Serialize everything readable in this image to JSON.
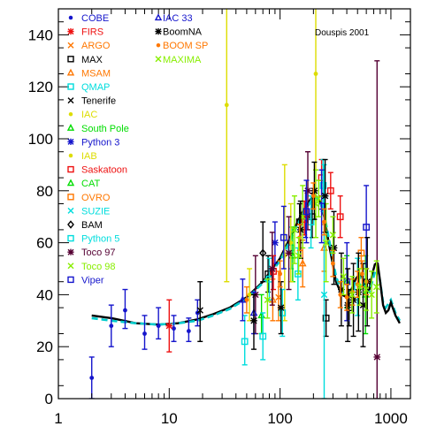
{
  "chart_data": {
    "type": "scatter",
    "x_scale": "log",
    "xlim": [
      1,
      1500
    ],
    "ylim": [
      0,
      150
    ],
    "x_ticks": [
      1,
      10,
      100,
      1000
    ],
    "x_tick_labels": [
      "1",
      "10",
      "100",
      "1000"
    ],
    "y_ticks": [
      0,
      20,
      40,
      60,
      80,
      100,
      120,
      140
    ],
    "y_tick_labels": [
      "0",
      "20",
      "40",
      "60",
      "80",
      "100",
      "120",
      "140"
    ],
    "xlabel": "",
    "ylabel": "",
    "annotation": "Douspis 2001",
    "legend_position": "top-left",
    "series": [
      {
        "name": "COBE",
        "marker": "dot",
        "color": "#1515cc",
        "points": [
          [
            2,
            8,
            0,
            16
          ],
          [
            3,
            28,
            20,
            36
          ],
          [
            4,
            34,
            27,
            42
          ],
          [
            6,
            25,
            19,
            32
          ],
          [
            8,
            28,
            23,
            35
          ],
          [
            11,
            27,
            22,
            32
          ],
          [
            15,
            26,
            22,
            31
          ],
          [
            18,
            33,
            28,
            38
          ]
        ]
      },
      {
        "name": "FIRS",
        "marker": "asterisk",
        "color": "#ee1111",
        "points": [
          [
            10,
            28,
            18,
            38
          ]
        ]
      },
      {
        "name": "ARGO",
        "marker": "x",
        "color": "#ff7700",
        "points": [
          [
            97,
            39,
            30,
            49
          ]
        ]
      },
      {
        "name": "MAX",
        "marker": "square",
        "color": "#000000",
        "points": [
          [
            78,
            48,
            41,
            55
          ],
          [
            150,
            68,
            60,
            75
          ],
          [
            195,
            70,
            62,
            79
          ],
          [
            260,
            31,
            24,
            38
          ],
          [
            420,
            35,
            28,
            42
          ]
        ]
      },
      {
        "name": "MSAM",
        "marker": "triangle",
        "color": "#ff7700",
        "points": [
          [
            86,
            38,
            30,
            46
          ],
          [
            160,
            52,
            43,
            61
          ],
          [
            250,
            58,
            49,
            67
          ]
        ]
      },
      {
        "name": "QMAP",
        "marker": "square",
        "color": "#00dddd",
        "points": [
          [
            80,
            46,
            38,
            54
          ],
          [
            126,
            58,
            50,
            66
          ]
        ]
      },
      {
        "name": "Tenerife",
        "marker": "x",
        "color": "#000000",
        "points": [
          [
            19,
            34,
            22,
            45
          ]
        ]
      },
      {
        "name": "IAC",
        "marker": "dot",
        "color": "#dddd00",
        "points": [
          [
            33,
            113,
            45,
            160
          ],
          [
            53,
            40,
            30,
            50
          ],
          [
            110,
            55,
            30,
            90
          ],
          [
            210,
            125,
            88,
            160
          ]
        ]
      },
      {
        "name": "South Pole",
        "marker": "triangle",
        "color": "#00dd00",
        "points": [
          [
            68,
            32,
            25,
            40
          ],
          [
            130,
            55,
            45,
            66
          ]
        ]
      },
      {
        "name": "Python 3",
        "marker": "asterisk",
        "color": "#1515cc",
        "points": [
          [
            90,
            60,
            52,
            68
          ],
          [
            170,
            70,
            62,
            80
          ]
        ]
      },
      {
        "name": "IAB",
        "marker": "dot",
        "color": "#dddd00",
        "points": [
          [
            125,
            60,
            45,
            75
          ]
        ]
      },
      {
        "name": "Saskatoon",
        "marker": "square",
        "color": "#ee1111",
        "points": [
          [
            87,
            49,
            42,
            55
          ],
          [
            166,
            69,
            63,
            76
          ],
          [
            237,
            85,
            78,
            92
          ],
          [
            286,
            80,
            73,
            87
          ],
          [
            349,
            70,
            62,
            78
          ]
        ]
      },
      {
        "name": "CAT",
        "marker": "triangle",
        "color": "#00dd00",
        "points": [
          [
            400,
            45,
            35,
            55
          ],
          [
            590,
            40,
            25,
            55
          ]
        ]
      },
      {
        "name": "OVRO",
        "marker": "square",
        "color": "#ff7700",
        "points": [
          [
            540,
            56,
            50,
            62
          ]
        ]
      },
      {
        "name": "SUZIE",
        "marker": "x",
        "color": "#00dddd",
        "points": [
          [
            250,
            40,
            0,
            90
          ]
        ]
      },
      {
        "name": "BAM",
        "marker": "diamond",
        "color": "#000000",
        "points": [
          [
            70,
            56,
            45,
            68
          ]
        ]
      },
      {
        "name": "Python 5",
        "marker": "square",
        "color": "#00dddd",
        "points": [
          [
            48,
            22,
            13,
            32
          ],
          [
            70,
            24,
            15,
            33
          ],
          [
            105,
            33,
            24,
            42
          ],
          [
            145,
            48,
            38,
            58
          ],
          [
            190,
            68,
            58,
            78
          ],
          [
            245,
            82,
            72,
            92
          ],
          [
            500,
            43,
            32,
            54
          ]
        ]
      },
      {
        "name": "Toco 97",
        "marker": "asterisk",
        "color": "#550033",
        "points": [
          [
            60,
            40,
            25,
            55
          ],
          [
            85,
            50,
            36,
            64
          ],
          [
            120,
            56,
            42,
            70
          ],
          [
            178,
            80,
            65,
            95
          ],
          [
            750,
            16,
            0,
            130
          ]
        ]
      },
      {
        "name": "Toco 98",
        "marker": "x",
        "color": "#88ee00",
        "points": [
          [
            135,
            65,
            52,
            78
          ],
          [
            160,
            70,
            58,
            82
          ],
          [
            210,
            75,
            62,
            88
          ],
          [
            260,
            60,
            45,
            75
          ]
        ]
      },
      {
        "name": "Viper",
        "marker": "square",
        "color": "#1515cc",
        "points": [
          [
            108,
            62,
            50,
            74
          ],
          [
            173,
            72,
            60,
            84
          ],
          [
            237,
            74,
            60,
            88
          ],
          [
            401,
            45,
            30,
            60
          ],
          [
            600,
            66,
            50,
            82
          ]
        ]
      },
      {
        "name": "IAC 33",
        "marker": "triangle",
        "color": "#1515cc",
        "points": [
          [
            46,
            38,
            30,
            46
          ],
          [
            58,
            33,
            25,
            41
          ]
        ]
      },
      {
        "name": "BoomNA",
        "marker": "asterisk",
        "color": "#000000",
        "points": [
          [
            58,
            30,
            19,
            40
          ],
          [
            102,
            35,
            25,
            45
          ],
          [
            153,
            65,
            54,
            76
          ],
          [
            204,
            80,
            69,
            91
          ],
          [
            255,
            78,
            64,
            92
          ],
          [
            306,
            58,
            44,
            72
          ],
          [
            357,
            42,
            28,
            56
          ],
          [
            408,
            36,
            22,
            50
          ],
          [
            459,
            38,
            24,
            52
          ],
          [
            510,
            41,
            26,
            56
          ],
          [
            561,
            36,
            20,
            52
          ],
          [
            612,
            45,
            28,
            62
          ]
        ]
      },
      {
        "name": "BOOM SP",
        "marker": "dot",
        "color": "#ff7700",
        "points": [
          [
            50,
            38,
            33,
            43
          ],
          [
            100,
            48,
            43,
            53
          ],
          [
            150,
            62,
            57,
            67
          ],
          [
            200,
            78,
            73,
            83
          ],
          [
            250,
            68,
            63,
            73
          ],
          [
            300,
            52,
            47,
            57
          ],
          [
            350,
            40,
            35,
            45
          ],
          [
            400,
            39,
            34,
            44
          ],
          [
            450,
            41,
            36,
            46
          ],
          [
            500,
            44,
            39,
            49
          ],
          [
            550,
            48,
            43,
            53
          ],
          [
            600,
            45,
            40,
            50
          ]
        ]
      },
      {
        "name": "MAXIMA",
        "marker": "x",
        "color": "#88ee00",
        "points": [
          [
            77,
            38,
            31,
            46
          ],
          [
            147,
            55,
            48,
            62
          ],
          [
            223,
            77,
            70,
            84
          ],
          [
            300,
            63,
            56,
            70
          ],
          [
            374,
            47,
            40,
            54
          ],
          [
            447,
            40,
            33,
            47
          ],
          [
            522,
            43,
            36,
            50
          ],
          [
            597,
            42,
            34,
            50
          ],
          [
            670,
            40,
            31,
            49
          ],
          [
            742,
            43,
            33,
            53
          ]
        ]
      }
    ],
    "curves": [
      {
        "style": "solid",
        "color": "#000000",
        "x": [
          2,
          3,
          5,
          8,
          12,
          18,
          25,
          35,
          50,
          70,
          100,
          130,
          160,
          190,
          210,
          230,
          250,
          280,
          320,
          360,
          400,
          440,
          480,
          520,
          560,
          600,
          640,
          680,
          720
        ],
        "y": [
          32,
          31,
          29,
          28.5,
          29,
          30.5,
          32.5,
          35,
          39,
          45,
          54,
          64,
          72,
          77,
          78,
          76,
          70,
          58,
          45,
          40,
          39,
          42,
          46,
          48,
          46,
          41,
          42,
          48,
          52
        ]
      },
      {
        "style": "dashed",
        "color": "#00cccc",
        "x": [
          2,
          3,
          5,
          8,
          12,
          18,
          25,
          35,
          50,
          70,
          100,
          130,
          160,
          190,
          210,
          230,
          250,
          280,
          320,
          360,
          400,
          440,
          480,
          520,
          560,
          600,
          640,
          680,
          720,
          760,
          800,
          850,
          900,
          1000,
          1100,
          1200
        ],
        "y": [
          31,
          30,
          29,
          28.5,
          29,
          30,
          32,
          34.5,
          38.5,
          44.5,
          53,
          63,
          71,
          76,
          77.5,
          76,
          71,
          60,
          47,
          41,
          40,
          42,
          45,
          47,
          45,
          41,
          41,
          45,
          49,
          50,
          45,
          37,
          35,
          38,
          33,
          30
        ]
      },
      {
        "style": "solid",
        "color": "#000000",
        "x": [
          720,
          760,
          800,
          850,
          900,
          950,
          1000,
          1100,
          1200
        ],
        "y": [
          52,
          52,
          45,
          36,
          33,
          34,
          37,
          32,
          29
        ]
      }
    ]
  }
}
